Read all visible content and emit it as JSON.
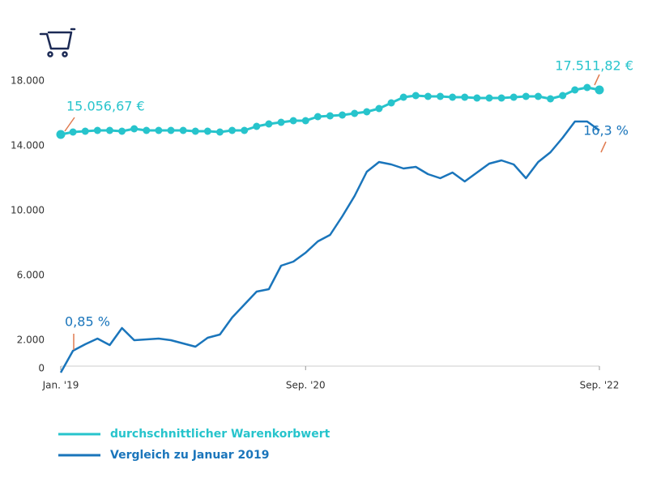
{
  "chart_data": {
    "type": "line",
    "categories": [
      "Jan. '19",
      null,
      null,
      null,
      null,
      null,
      null,
      null,
      null,
      null,
      null,
      null,
      null,
      null,
      null,
      null,
      null,
      null,
      null,
      null,
      "Sep. '20",
      null,
      null,
      null,
      null,
      null,
      null,
      null,
      null,
      null,
      null,
      null,
      null,
      null,
      null,
      null,
      null,
      null,
      null,
      null,
      null,
      null,
      null,
      null,
      "Sep. '22"
    ],
    "series": [
      {
        "name": "durchschnittlicher Warenkorbwert",
        "color": "#27c4cc",
        "markers": true,
        "values": [
          14700,
          14850,
          14900,
          14950,
          14950,
          14900,
          15050,
          14950,
          14950,
          14950,
          14950,
          14900,
          14900,
          14850,
          14950,
          14950,
          15200,
          15350,
          15450,
          15550,
          15550,
          15800,
          15850,
          15900,
          16000,
          16100,
          16300,
          16650,
          17000,
          17100,
          17050,
          17050,
          17000,
          17000,
          16950,
          16950,
          16950,
          17000,
          17050,
          17050,
          16900,
          17100,
          17450,
          17600,
          17450
        ]
      },
      {
        "name": "Vergleich zu Januar 2019",
        "color": "#1a75bb",
        "markers": false,
        "values": [
          0,
          1350,
          1750,
          2100,
          1700,
          2750,
          2000,
          2050,
          2100,
          2000,
          1800,
          1600,
          2150,
          2350,
          3400,
          4200,
          5000,
          5150,
          6600,
          6850,
          7400,
          8100,
          8500,
          9650,
          10900,
          12400,
          13000,
          12850,
          12600,
          12700,
          12250,
          12000,
          12350,
          11800,
          12350,
          12900,
          13100,
          12850,
          12000,
          13000,
          13600,
          14500,
          15500,
          15500,
          14950
        ]
      }
    ],
    "annotations": [
      "15.056,67 €",
      "17.511,82 €",
      "0,85 %",
      "16,3 %"
    ],
    "ylim": [
      0,
      18000
    ],
    "yticks": [
      0,
      {
        "value": 2000,
        "label": "2.000"
      },
      {
        "value": 6000,
        "label": "6.000"
      },
      {
        "value": 10000,
        "label": "10.000"
      },
      {
        "value": 14000,
        "label": "14.000"
      },
      {
        "value": 18000,
        "label": "18.000"
      }
    ]
  }
}
